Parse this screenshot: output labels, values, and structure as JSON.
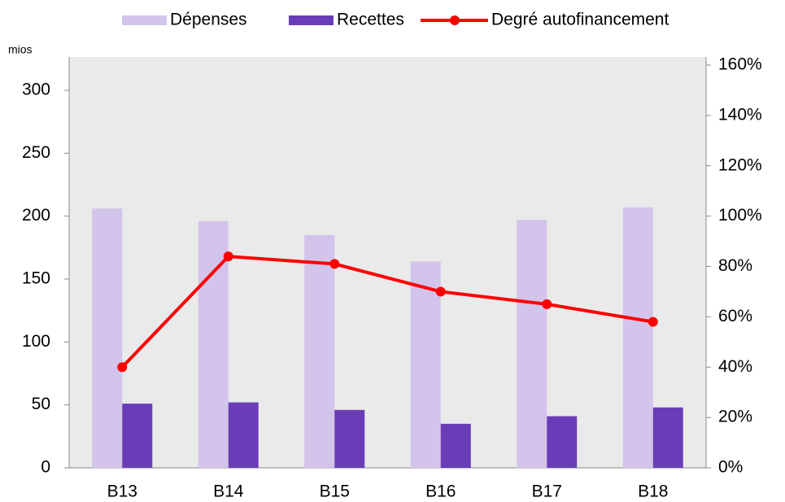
{
  "chart_data": {
    "type": "bar",
    "y_label": "mios",
    "categories": [
      "B13",
      "B14",
      "B15",
      "B16",
      "B17",
      "B18"
    ],
    "series": [
      {
        "name": "Dépenses",
        "color": "#d3c4ec",
        "values": [
          206,
          196,
          185,
          164,
          197,
          207
        ]
      },
      {
        "name": "Recettes",
        "color": "#6a3db8",
        "values": [
          51,
          52,
          46,
          35,
          41,
          48
        ]
      },
      {
        "name": "Degré autofinancement",
        "color": "#ff0000",
        "type": "line",
        "axis": "y2",
        "values": [
          40,
          84,
          81,
          70,
          65,
          58
        ]
      }
    ],
    "ylim": [
      0,
      320
    ],
    "yticks": [
      0,
      50,
      100,
      150,
      200,
      250,
      300
    ],
    "y2lim": [
      0,
      160
    ],
    "y2ticks": [
      {
        "value": 0,
        "label": "0%"
      },
      {
        "value": 20,
        "label": "20%"
      },
      {
        "value": 40,
        "label": "40%"
      },
      {
        "value": 60,
        "label": "60%"
      },
      {
        "value": 80,
        "label": "80%"
      },
      {
        "value": 100,
        "label": "100%"
      },
      {
        "value": 120,
        "label": "120%"
      },
      {
        "value": 140,
        "label": "140%"
      },
      {
        "value": 160,
        "label": "160%"
      }
    ],
    "legend": "top"
  }
}
